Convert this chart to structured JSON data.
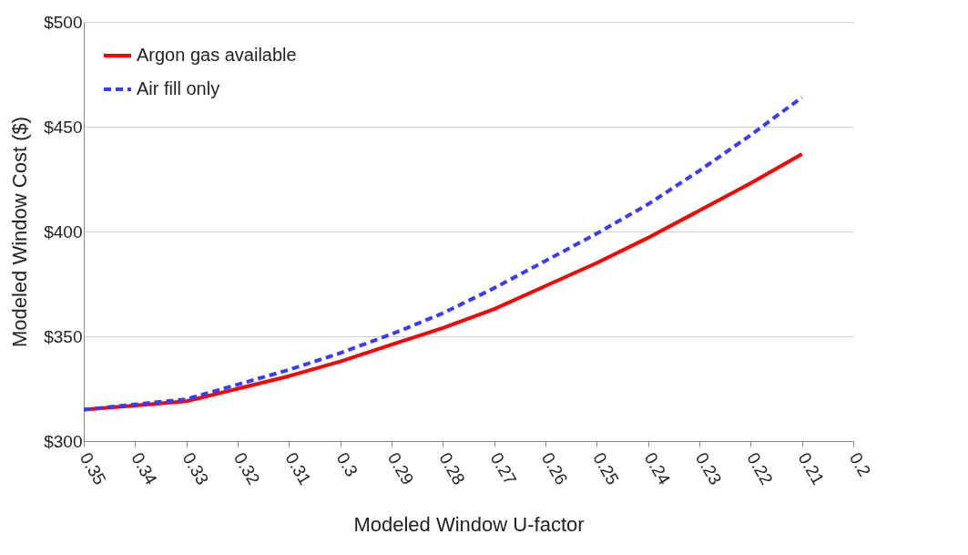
{
  "chart_data": {
    "type": "line",
    "xlabel": "Modeled Window U-factor",
    "ylabel": "Modeled Window Cost ($)",
    "x": [
      0.35,
      0.34,
      0.33,
      0.32,
      0.31,
      0.3,
      0.29,
      0.28,
      0.27,
      0.26,
      0.25,
      0.24,
      0.23,
      0.22,
      0.21
    ],
    "series": [
      {
        "name": "Argon gas available",
        "color": "#ff0000",
        "line_style": "solid",
        "values": [
          315,
          317,
          319,
          325,
          331,
          338,
          346,
          354,
          363,
          374,
          385,
          397,
          410,
          423,
          437
        ]
      },
      {
        "name": "Air fill only",
        "color": "#3b3bff",
        "line_style": "dashed",
        "values": [
          315,
          317.5,
          320,
          327,
          334,
          342,
          351,
          361,
          373,
          386,
          399,
          413,
          429,
          446,
          464
        ]
      }
    ],
    "xlim": [
      0.35,
      0.2
    ],
    "xticks": [
      0.35,
      0.34,
      0.33,
      0.32,
      0.31,
      0.3,
      0.29,
      0.28,
      0.27,
      0.26,
      0.25,
      0.24,
      0.23,
      0.22,
      0.21,
      0.2
    ],
    "ylim": [
      300,
      500
    ],
    "yticks": [
      {
        "value": 300,
        "label": "$300"
      },
      {
        "value": 350,
        "label": "$350"
      },
      {
        "value": 400,
        "label": "$400"
      },
      {
        "value": 450,
        "label": "$450"
      },
      {
        "value": 500,
        "label": "$500"
      }
    ],
    "grid": "y",
    "legend": "top left",
    "marker": "none"
  }
}
